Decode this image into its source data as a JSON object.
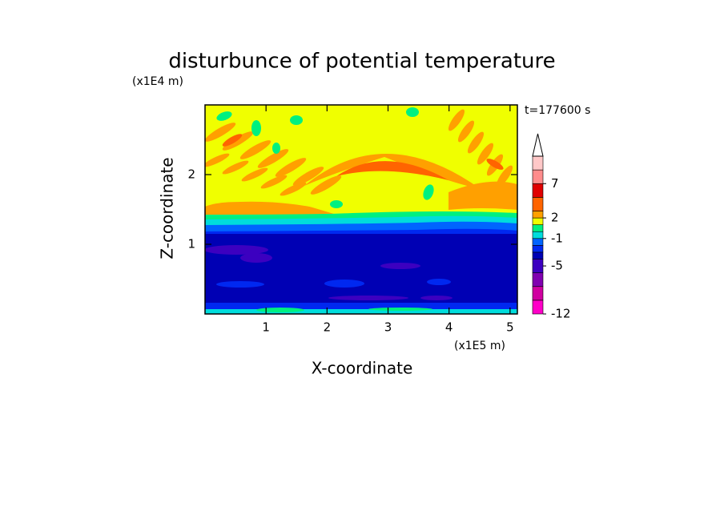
{
  "chart_data": {
    "type": "contour",
    "title": "disturbunce of potential temperature",
    "xlabel": "X-coordinate",
    "ylabel": "Z-coordinate",
    "x_unit_label": "(x1E5 m)",
    "y_unit_label": "(x1E4 m)",
    "annotation": "t=177600 s",
    "xlim": [
      0,
      5.12
    ],
    "ylim": [
      0,
      3
    ],
    "xticks": [
      1,
      2,
      3,
      4,
      5
    ],
    "yticks": [
      1,
      2
    ],
    "colorbar": {
      "levels": [
        -12,
        -10,
        -8,
        -6,
        -4,
        -3,
        -2,
        -1,
        0,
        1,
        2,
        3,
        5,
        7,
        9,
        11
      ],
      "colors": [
        "#ff00c8",
        "#d000a0",
        "#8000b0",
        "#3c00c0",
        "#0000b4",
        "#0028f0",
        "#0064ff",
        "#00dcdc",
        "#00f080",
        "#f0ff00",
        "#ffa000",
        "#ff6400",
        "#e00000",
        "#ff8c8c",
        "#ffc8c8"
      ],
      "ticks": [
        -12,
        -5,
        -1,
        2,
        7
      ],
      "extend": "max"
    }
  }
}
